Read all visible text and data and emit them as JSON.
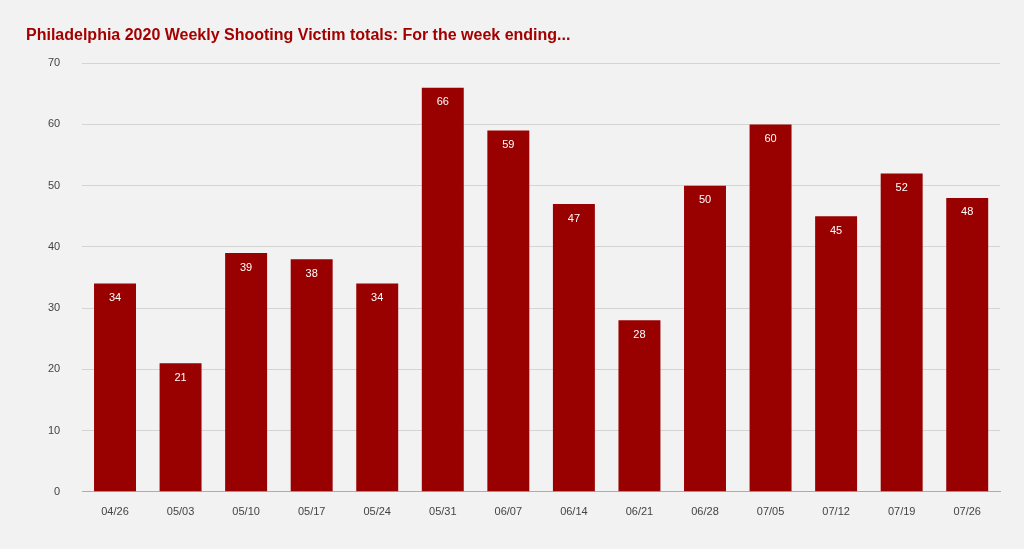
{
  "chart_data": {
    "type": "bar",
    "title": "Philadelphia 2020 Weekly Shooting Victim totals: For the week ending...",
    "categories": [
      "04/26",
      "05/03",
      "05/10",
      "05/17",
      "05/24",
      "05/31",
      "06/07",
      "06/14",
      "06/21",
      "06/28",
      "07/05",
      "07/12",
      "07/19",
      "07/26"
    ],
    "values": [
      34,
      21,
      39,
      38,
      34,
      66,
      59,
      47,
      28,
      50,
      60,
      45,
      52,
      48
    ],
    "color": "#990000",
    "ylim": [
      0,
      70
    ],
    "yticks": [
      0,
      10,
      20,
      30,
      40,
      50,
      60,
      70
    ],
    "grid": "y",
    "data_labels": true
  }
}
